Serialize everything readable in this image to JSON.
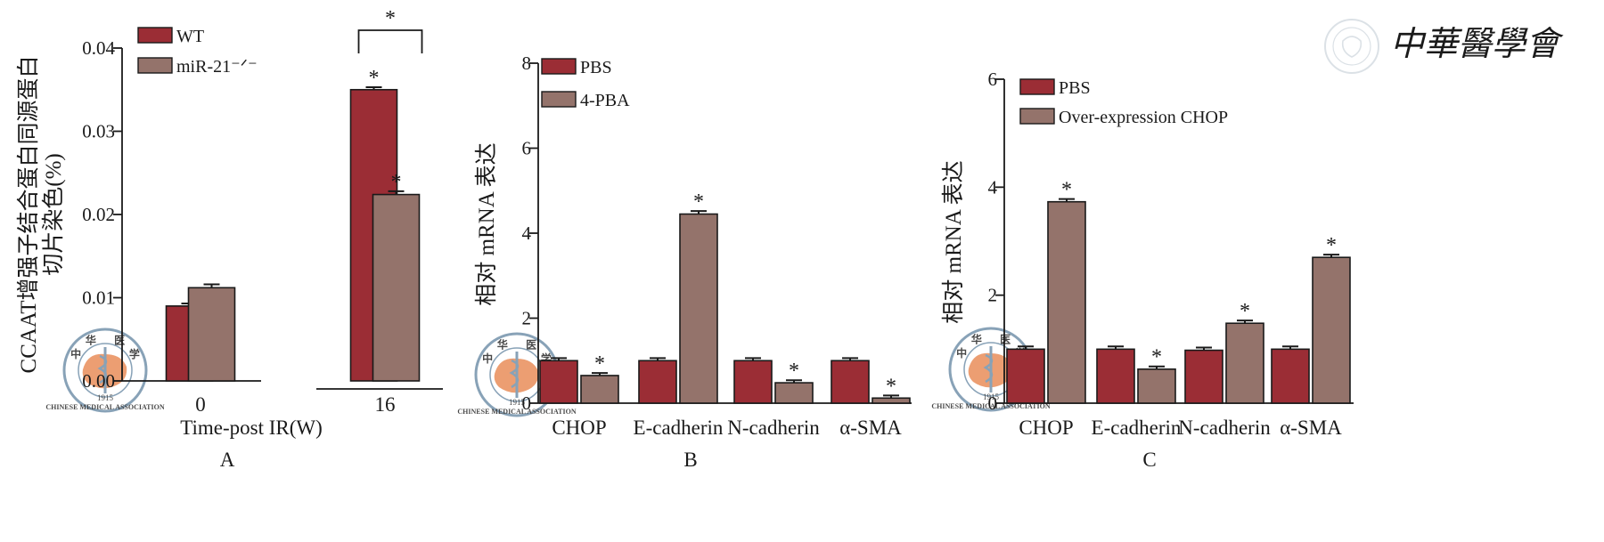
{
  "colors": {
    "series_a": "#9b2d35",
    "series_b": "#94736b",
    "axis": "#1a1a1a",
    "watermark": "#6b8ba6",
    "logo_map": "#e8874f"
  },
  "watermark": {
    "text": "中華醫學會",
    "seal_text": "中华医学会",
    "seal_label": "CHINESE MEDICAL ASSOCIATION",
    "seal_year": "1915"
  },
  "chart_data": [
    {
      "panel": "A",
      "type": "bar",
      "categories": [
        "0",
        "16"
      ],
      "xlabel": "Time-post IR(W)",
      "ylabel": "CCAAT增强子结合蛋白同源蛋白切片染色(%)",
      "ylabel_lines": [
        "CCAAT增强子结合蛋白同源蛋白",
        "切片染色(%)"
      ],
      "ylim": [
        0,
        0.04
      ],
      "yticks": [
        "0.00",
        "0.01",
        "0.02",
        "0.03",
        "0.04"
      ],
      "ytick_values": [
        0,
        0.01,
        0.02,
        0.03,
        0.04
      ],
      "series": [
        {
          "name": "WT",
          "values": [
            0.009,
            0.035
          ],
          "errors": [
            0.0003,
            0.0003
          ],
          "sig": [
            "",
            "*"
          ]
        },
        {
          "name": "miR-21⁻ᐟ⁻",
          "values": [
            0.0112,
            0.0224
          ],
          "errors": [
            0.0004,
            0.0004
          ],
          "sig": [
            "",
            "*"
          ]
        }
      ],
      "annotations": [
        {
          "type": "bracket",
          "between": "16",
          "label": "*"
        }
      ],
      "legend": "top-left"
    },
    {
      "panel": "B",
      "type": "bar",
      "categories": [
        "CHOP",
        "E-cadherin",
        "N-cadherin",
        "α-SMA"
      ],
      "xlabel": "",
      "ylabel": "相对 mRNA 表达",
      "ylim": [
        0,
        8
      ],
      "yticks": [
        "0",
        "2",
        "4",
        "6",
        "8"
      ],
      "ytick_values": [
        0,
        2,
        4,
        6,
        8
      ],
      "series": [
        {
          "name": "PBS",
          "values": [
            1.0,
            1.0,
            1.0,
            1.0
          ],
          "errors": [
            0.06,
            0.06,
            0.06,
            0.06
          ],
          "sig": [
            "",
            "",
            "",
            ""
          ]
        },
        {
          "name": "4-PBA",
          "values": [
            0.65,
            4.45,
            0.48,
            0.12
          ],
          "errors": [
            0.06,
            0.07,
            0.06,
            0.06
          ],
          "sig": [
            "*",
            "*",
            "*",
            "*"
          ]
        }
      ],
      "legend": "top-left"
    },
    {
      "panel": "C",
      "type": "bar",
      "categories": [
        "CHOP",
        "E-cadherin",
        "N-cadherin",
        "α-SMA"
      ],
      "xlabel": "",
      "ylabel": "相对 mRNA 表达",
      "ylim": [
        0,
        6
      ],
      "yticks": [
        "0",
        "2",
        "4",
        "6"
      ],
      "ytick_values": [
        0,
        2,
        4,
        6
      ],
      "series": [
        {
          "name": "PBS",
          "values": [
            1.0,
            1.0,
            0.98,
            1.0
          ],
          "errors": [
            0.05,
            0.05,
            0.05,
            0.05
          ],
          "sig": [
            "",
            "",
            "",
            ""
          ]
        },
        {
          "name": "Over-expression CHOP",
          "values": [
            3.73,
            0.63,
            1.48,
            2.7
          ],
          "errors": [
            0.05,
            0.05,
            0.05,
            0.05
          ],
          "sig": [
            "*",
            "*",
            "*",
            "*"
          ]
        }
      ],
      "legend": "top-left"
    }
  ]
}
